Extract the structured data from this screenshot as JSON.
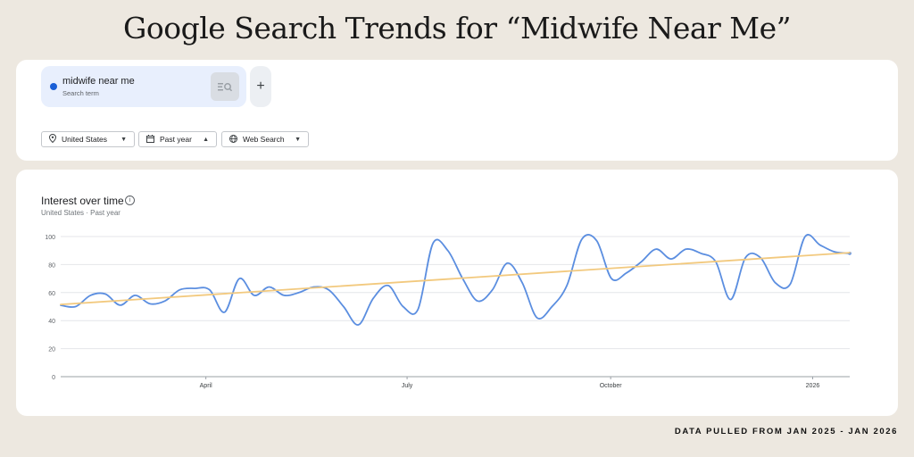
{
  "page": {
    "title": "Google Search Trends for “Midwife Near Me”",
    "footer": "DATA PULLED FROM JAN 2025 - JAN 2026"
  },
  "search": {
    "term": "midwife near me",
    "term_type": "Search term",
    "term_color": "#1a5fd6",
    "add_label": "+",
    "compare_icon": "compare-search-icon"
  },
  "filters": [
    {
      "label": "United States",
      "icon": "location-pin-icon",
      "caret": "▼"
    },
    {
      "label": "Past year",
      "icon": "calendar-icon",
      "caret": "▲"
    },
    {
      "label": "Web Search",
      "icon": "globe-icon",
      "caret": "▼"
    }
  ],
  "panel": {
    "title": "Interest over time",
    "subtitle": "United States · Past year",
    "info_icon": "i"
  },
  "chart_data": {
    "type": "line",
    "ylim": [
      0,
      100
    ],
    "yticks": [
      0,
      20,
      40,
      60,
      80,
      100
    ],
    "x_tick_labels": [
      {
        "label": "April",
        "pos": 0.184
      },
      {
        "label": "July",
        "pos": 0.439
      },
      {
        "label": "October",
        "pos": 0.697
      },
      {
        "label": "2026",
        "pos": 0.953
      }
    ],
    "grid": true,
    "series": [
      {
        "color": "#5b8ee0",
        "values": [
          51,
          50,
          58,
          59,
          51,
          58,
          52,
          54,
          62,
          63,
          62,
          46,
          70,
          58,
          64,
          58,
          60,
          64,
          62,
          50,
          37,
          56,
          65,
          50,
          48,
          95,
          90,
          70,
          54,
          62,
          81,
          67,
          42,
          50,
          65,
          98,
          97,
          70,
          74,
          82,
          91,
          84,
          91,
          88,
          82,
          55,
          85,
          85,
          67,
          66,
          100,
          94,
          89,
          88
        ]
      },
      {
        "color": "#f2c97e",
        "values": [
          51.5,
          88.5
        ],
        "trend": true
      }
    ]
  }
}
